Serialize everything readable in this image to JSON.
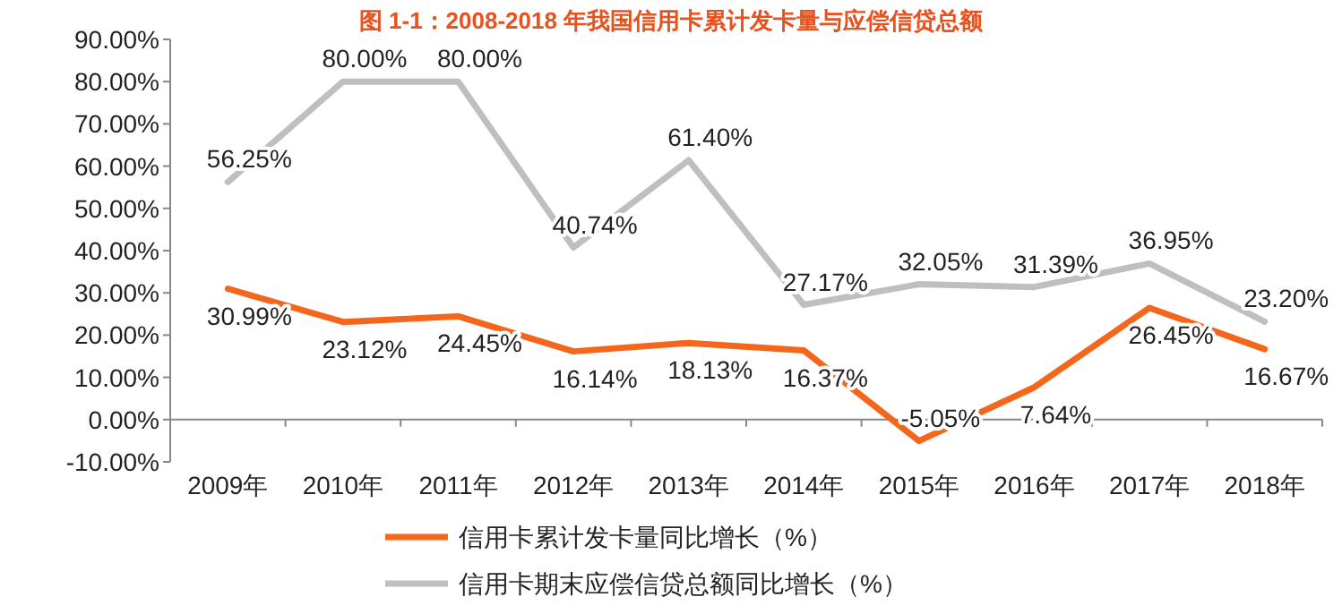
{
  "chart_data": {
    "type": "line",
    "title": "图 1-1：2008-2018 年我国信用卡累计发卡量与应偿信贷总额",
    "categories": [
      "2009年",
      "2010年",
      "2011年",
      "2012年",
      "2013年",
      "2014年",
      "2015年",
      "2016年",
      "2017年",
      "2018年"
    ],
    "series": [
      {
        "name": "信用卡累计发卡量同比增长（%）",
        "color": "#f4661b",
        "values": [
          30.99,
          23.12,
          24.45,
          16.14,
          18.13,
          16.37,
          -5.05,
          7.64,
          26.45,
          16.67
        ],
        "value_labels": [
          "30.99%",
          "23.12%",
          "24.45%",
          "16.14%",
          "18.13%",
          "16.37%",
          "-5.05%",
          "7.64%",
          "26.45%",
          "16.67%"
        ]
      },
      {
        "name": "信用卡期末应偿信贷总额同比增长（%）",
        "color": "#bfbfbf",
        "values": [
          56.25,
          80.0,
          80.0,
          40.74,
          61.4,
          27.17,
          32.05,
          31.39,
          36.95,
          23.2
        ],
        "value_labels": [
          "56.25%",
          "80.00%",
          "80.00%",
          "40.74%",
          "61.40%",
          "27.17%",
          "32.05%",
          "31.39%",
          "36.95%",
          "23.20%"
        ]
      }
    ],
    "ylim": [
      -10,
      90
    ],
    "yticks": [
      {
        "value": -10,
        "label": "-10.00%"
      },
      {
        "value": 0,
        "label": "0.00%"
      },
      {
        "value": 10,
        "label": "10.00%"
      },
      {
        "value": 20,
        "label": "20.00%"
      },
      {
        "value": 30,
        "label": "30.00%"
      },
      {
        "value": 40,
        "label": "40.00%"
      },
      {
        "value": 50,
        "label": "50.00%"
      },
      {
        "value": 60,
        "label": "60.00%"
      },
      {
        "value": 70,
        "label": "70.00%"
      },
      {
        "value": 80,
        "label": "80.00%"
      },
      {
        "value": 90,
        "label": "90.00%"
      }
    ],
    "grid": false,
    "legend": "bottom",
    "marker": "none",
    "line_style": "solid"
  }
}
